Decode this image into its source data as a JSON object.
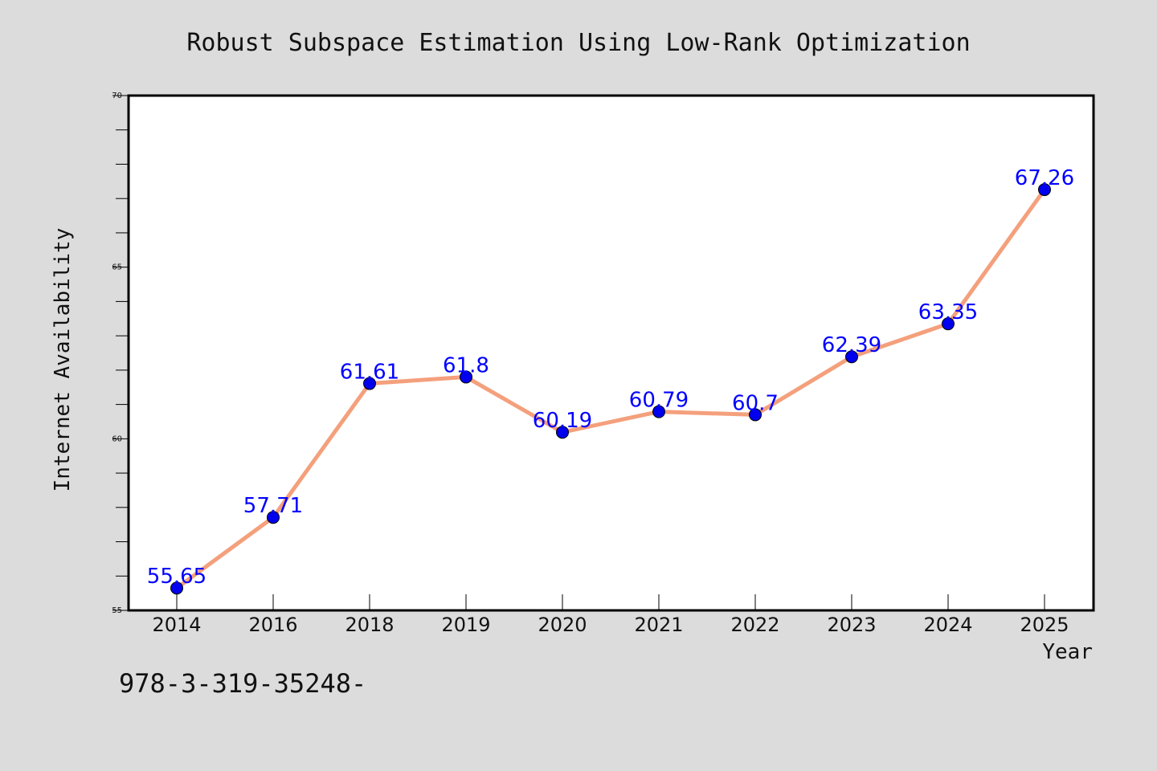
{
  "chart_data": {
    "type": "line",
    "title": "Robust Subspace Estimation Using Low-Rank Optimization",
    "xlabel": "Year",
    "ylabel": "Internet Availability",
    "categories": [
      "2014",
      "2016",
      "2018",
      "2019",
      "2020",
      "2021",
      "2022",
      "2023",
      "2024",
      "2025"
    ],
    "series": [
      {
        "values": [
          55.65,
          57.71,
          61.61,
          61.8,
          60.19,
          60.79,
          60.7,
          62.39,
          63.35,
          67.26
        ],
        "labels": [
          "55.65",
          "57.71",
          "61.61",
          "61.8",
          "60.19",
          "60.79",
          "60.7",
          "62.39",
          "63.35",
          "67.26"
        ]
      }
    ],
    "ylim": [
      55,
      70
    ],
    "yticks": [
      "55",
      "60",
      "65",
      "70"
    ],
    "grid": false,
    "legend": "none",
    "colors": {
      "line": "#f4a07c",
      "marker": "#0000ee",
      "data_label": "#0000ff",
      "background": "#dcdcdc",
      "plot_background": "#ffffff"
    }
  },
  "footer": {
    "text": "978-3-319-35248-"
  }
}
